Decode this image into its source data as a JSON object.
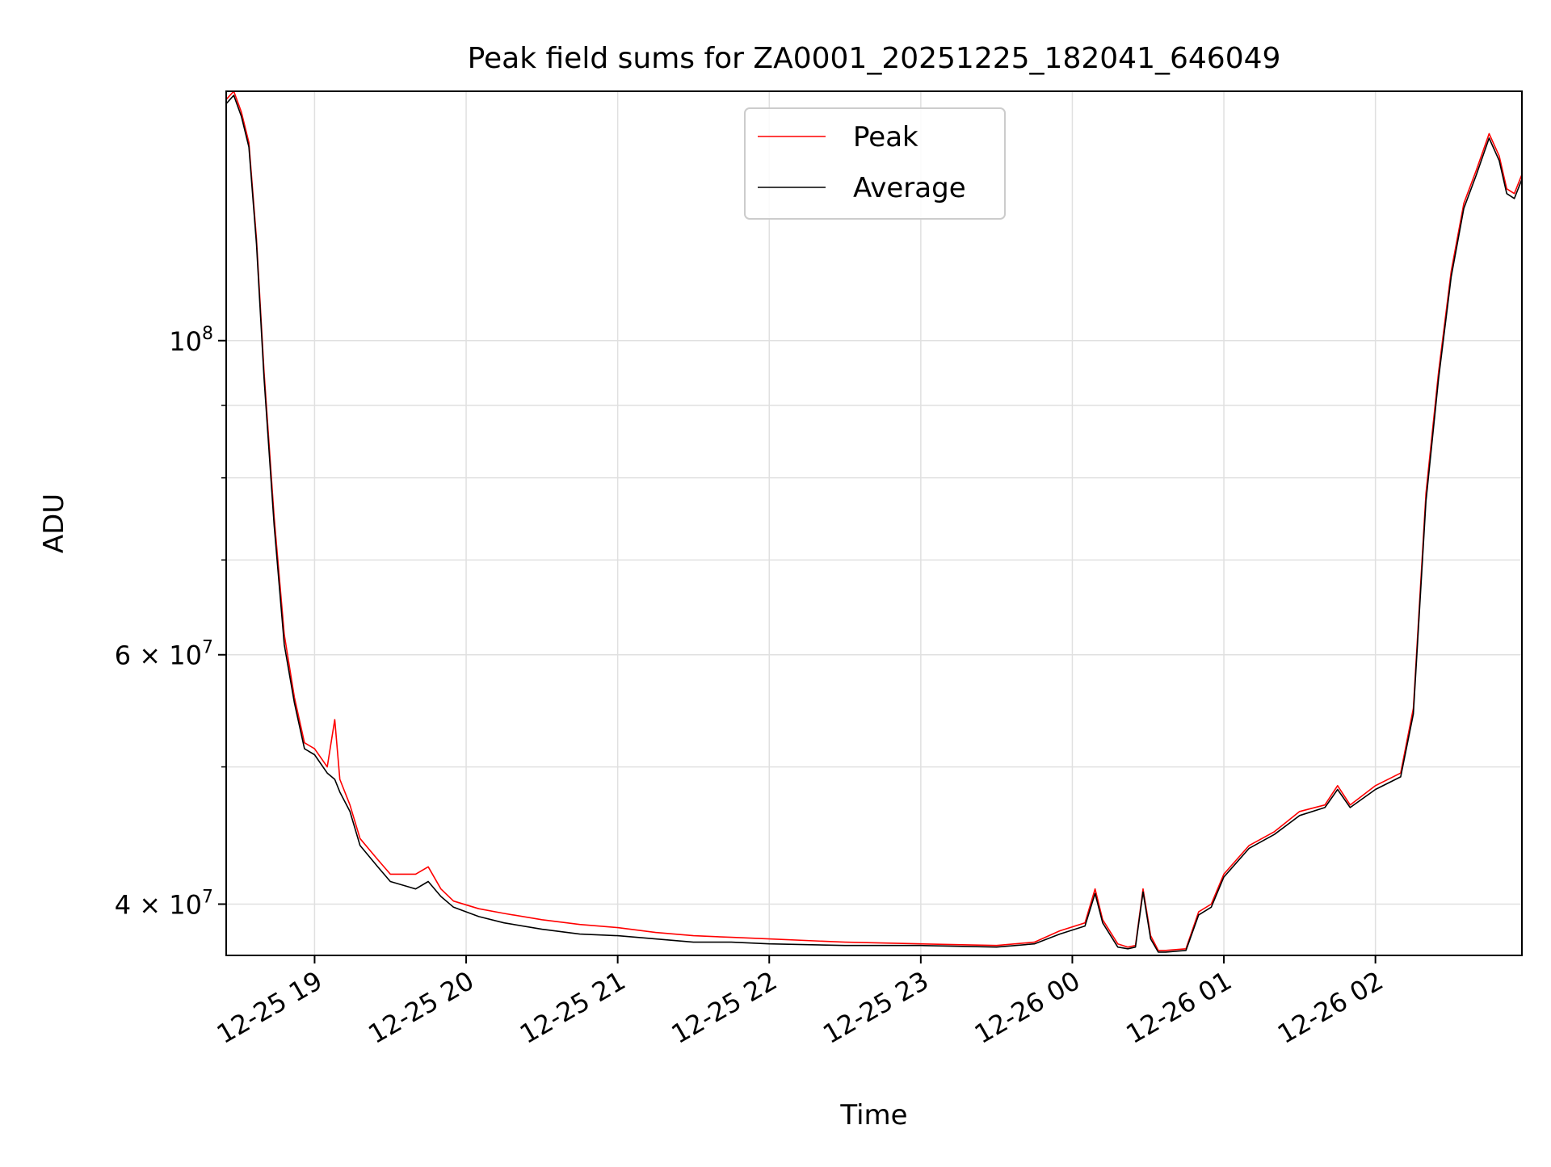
{
  "chart_data": {
    "type": "line",
    "title": "Peak field sums for ZA0001_20251225_182041_646049",
    "xlabel": "Time",
    "ylabel": "ADU",
    "yscale": "log",
    "grid": true,
    "legend_position": "upper center",
    "xlim": [
      "2025-12-25 18:25",
      "2025-12-26 02:58"
    ],
    "ylim": [
      36800000,
      150000000
    ],
    "xticks": [
      {
        "t": "2025-12-25 19:00",
        "label": "12-25 19"
      },
      {
        "t": "2025-12-25 20:00",
        "label": "12-25 20"
      },
      {
        "t": "2025-12-25 21:00",
        "label": "12-25 21"
      },
      {
        "t": "2025-12-25 22:00",
        "label": "12-25 22"
      },
      {
        "t": "2025-12-25 23:00",
        "label": "12-25 23"
      },
      {
        "t": "2025-12-26 00:00",
        "label": "12-26 00"
      },
      {
        "t": "2025-12-26 01:00",
        "label": "12-26 01"
      },
      {
        "t": "2025-12-26 02:00",
        "label": "12-26 02"
      }
    ],
    "yticks_major": [
      {
        "v": 40000000,
        "label": "4 × 10",
        "exp": "7"
      },
      {
        "v": 60000000,
        "label": "6 × 10",
        "exp": "7"
      },
      {
        "v": 100000000,
        "label": "10",
        "exp": "8"
      }
    ],
    "yticks_minor": [
      50000000,
      70000000,
      80000000,
      90000000
    ],
    "series": [
      {
        "name": "Peak",
        "color": "#ff0000",
        "x": [
          "2025-12-25 18:25",
          "2025-12-25 18:28",
          "2025-12-25 18:31",
          "2025-12-25 18:34",
          "2025-12-25 18:37",
          "2025-12-25 18:40",
          "2025-12-25 18:44",
          "2025-12-25 18:48",
          "2025-12-25 18:52",
          "2025-12-25 18:56",
          "2025-12-25 19:00",
          "2025-12-25 19:05",
          "2025-12-25 19:08",
          "2025-12-25 19:10",
          "2025-12-25 19:14",
          "2025-12-25 19:18",
          "2025-12-25 19:25",
          "2025-12-25 19:30",
          "2025-12-25 19:40",
          "2025-12-25 19:45",
          "2025-12-25 19:50",
          "2025-12-25 19:55",
          "2025-12-25 20:05",
          "2025-12-25 20:15",
          "2025-12-25 20:30",
          "2025-12-25 20:45",
          "2025-12-25 21:00",
          "2025-12-25 21:15",
          "2025-12-25 21:30",
          "2025-12-25 21:45",
          "2025-12-25 22:00",
          "2025-12-25 22:30",
          "2025-12-25 23:00",
          "2025-12-25 23:30",
          "2025-12-25 23:45",
          "2025-12-25 23:55",
          "2025-12-26 00:05",
          "2025-12-26 00:09",
          "2025-12-26 00:12",
          "2025-12-26 00:18",
          "2025-12-26 00:22",
          "2025-12-26 00:25",
          "2025-12-26 00:28",
          "2025-12-26 00:31",
          "2025-12-26 00:34",
          "2025-12-26 00:37",
          "2025-12-26 00:45",
          "2025-12-26 00:50",
          "2025-12-26 00:55",
          "2025-12-26 01:00",
          "2025-12-26 01:10",
          "2025-12-26 01:20",
          "2025-12-26 01:30",
          "2025-12-26 01:40",
          "2025-12-26 01:45",
          "2025-12-26 01:50",
          "2025-12-26 02:00",
          "2025-12-26 02:10",
          "2025-12-26 02:15",
          "2025-12-26 02:20",
          "2025-12-26 02:25",
          "2025-12-26 02:30",
          "2025-12-26 02:35",
          "2025-12-26 02:40",
          "2025-12-26 02:45",
          "2025-12-26 02:49",
          "2025-12-26 02:52",
          "2025-12-26 02:55",
          "2025-12-26 02:58"
        ],
        "y": [
          148000000,
          150000000,
          145000000,
          138000000,
          118000000,
          95000000,
          75000000,
          62000000,
          56000000,
          52000000,
          51500000,
          50000000,
          54000000,
          49000000,
          47000000,
          44500000,
          43000000,
          42000000,
          42000000,
          42500000,
          41000000,
          40200000,
          39700000,
          39400000,
          39000000,
          38700000,
          38500000,
          38200000,
          38000000,
          37900000,
          37800000,
          37600000,
          37500000,
          37400000,
          37600000,
          38300000,
          38800000,
          41000000,
          39000000,
          37500000,
          37300000,
          37400000,
          41000000,
          38000000,
          37100000,
          37100000,
          37200000,
          39500000,
          40000000,
          42000000,
          44000000,
          45000000,
          46500000,
          47000000,
          48500000,
          47000000,
          48500000,
          49500000,
          55000000,
          78000000,
          95000000,
          112000000,
          125000000,
          132000000,
          140000000,
          135000000,
          128000000,
          127000000,
          131000000
        ]
      },
      {
        "name": "Average",
        "color": "#000000",
        "x": [
          "2025-12-25 18:25",
          "2025-12-25 18:28",
          "2025-12-25 18:31",
          "2025-12-25 18:34",
          "2025-12-25 18:37",
          "2025-12-25 18:40",
          "2025-12-25 18:44",
          "2025-12-25 18:48",
          "2025-12-25 18:52",
          "2025-12-25 18:56",
          "2025-12-25 19:00",
          "2025-12-25 19:05",
          "2025-12-25 19:08",
          "2025-12-25 19:10",
          "2025-12-25 19:14",
          "2025-12-25 19:18",
          "2025-12-25 19:25",
          "2025-12-25 19:30",
          "2025-12-25 19:40",
          "2025-12-25 19:45",
          "2025-12-25 19:50",
          "2025-12-25 19:55",
          "2025-12-25 20:05",
          "2025-12-25 20:15",
          "2025-12-25 20:30",
          "2025-12-25 20:45",
          "2025-12-25 21:00",
          "2025-12-25 21:15",
          "2025-12-25 21:30",
          "2025-12-25 21:45",
          "2025-12-25 22:00",
          "2025-12-25 22:30",
          "2025-12-25 23:00",
          "2025-12-25 23:30",
          "2025-12-25 23:45",
          "2025-12-25 23:55",
          "2025-12-26 00:05",
          "2025-12-26 00:09",
          "2025-12-26 00:12",
          "2025-12-26 00:18",
          "2025-12-26 00:22",
          "2025-12-26 00:25",
          "2025-12-26 00:28",
          "2025-12-26 00:31",
          "2025-12-26 00:34",
          "2025-12-26 00:37",
          "2025-12-26 00:45",
          "2025-12-26 00:50",
          "2025-12-26 00:55",
          "2025-12-26 01:00",
          "2025-12-26 01:10",
          "2025-12-26 01:20",
          "2025-12-26 01:30",
          "2025-12-26 01:40",
          "2025-12-26 01:45",
          "2025-12-26 01:50",
          "2025-12-26 02:00",
          "2025-12-26 02:10",
          "2025-12-26 02:15",
          "2025-12-26 02:20",
          "2025-12-26 02:25",
          "2025-12-26 02:30",
          "2025-12-26 02:35",
          "2025-12-26 02:40",
          "2025-12-26 02:45",
          "2025-12-26 02:49",
          "2025-12-26 02:52",
          "2025-12-26 02:55",
          "2025-12-26 02:58"
        ],
        "y": [
          147000000,
          149000000,
          144000000,
          137000000,
          117000000,
          94000000,
          74000000,
          61000000,
          55500000,
          51500000,
          51000000,
          49500000,
          49000000,
          48000000,
          46500000,
          44000000,
          42500000,
          41500000,
          41000000,
          41500000,
          40500000,
          39800000,
          39200000,
          38800000,
          38400000,
          38100000,
          38000000,
          37800000,
          37600000,
          37600000,
          37500000,
          37400000,
          37400000,
          37300000,
          37500000,
          38100000,
          38600000,
          40700000,
          38800000,
          37300000,
          37200000,
          37300000,
          40800000,
          37800000,
          37000000,
          37000000,
          37100000,
          39300000,
          39800000,
          41800000,
          43800000,
          44800000,
          46200000,
          46800000,
          48200000,
          46800000,
          48200000,
          49200000,
          54500000,
          77000000,
          94000000,
          111000000,
          124000000,
          131000000,
          139000000,
          134000000,
          127000000,
          126000000,
          130000000
        ]
      }
    ]
  }
}
